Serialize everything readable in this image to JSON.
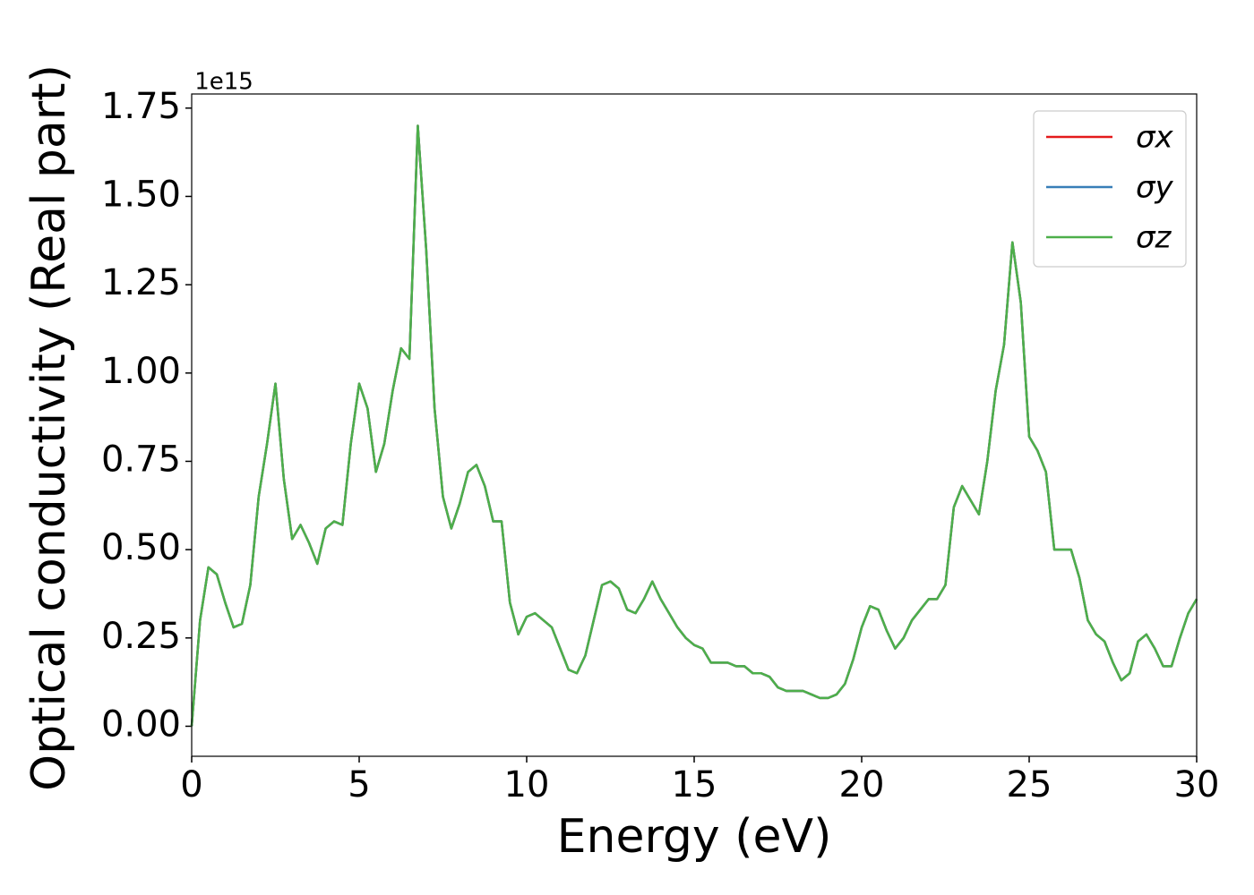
{
  "chart_data": {
    "type": "line",
    "xlabel": "Energy (eV)",
    "ylabel": "Optical conductivity (Real part)",
    "y_offset_label": "1e15",
    "x": [
      0,
      0.25,
      0.5,
      0.75,
      1,
      1.25,
      1.5,
      1.75,
      2,
      2.25,
      2.5,
      2.75,
      3,
      3.25,
      3.5,
      3.75,
      4,
      4.25,
      4.5,
      4.75,
      5,
      5.25,
      5.5,
      5.75,
      6,
      6.25,
      6.5,
      6.75,
      7,
      7.25,
      7.5,
      7.75,
      8,
      8.25,
      8.5,
      8.75,
      9,
      9.25,
      9.5,
      9.75,
      10,
      10.25,
      10.5,
      10.75,
      11,
      11.25,
      11.5,
      11.75,
      12,
      12.25,
      12.5,
      12.75,
      13,
      13.25,
      13.5,
      13.75,
      14,
      14.25,
      14.5,
      14.75,
      15,
      15.25,
      15.5,
      15.75,
      16,
      16.25,
      16.5,
      16.75,
      17,
      17.25,
      17.5,
      17.75,
      18,
      18.25,
      18.5,
      18.75,
      19,
      19.25,
      19.5,
      19.75,
      20,
      20.25,
      20.5,
      20.75,
      21,
      21.25,
      21.5,
      21.75,
      22,
      22.25,
      22.5,
      22.75,
      23,
      23.25,
      23.5,
      23.75,
      24,
      24.25,
      24.5,
      24.75,
      25,
      25.25,
      25.5,
      25.75,
      26,
      26.25,
      26.5,
      26.75,
      27,
      27.25,
      27.5,
      27.75,
      28,
      28.25,
      28.5,
      28.75,
      29,
      29.25,
      29.5,
      29.75,
      30
    ],
    "series": [
      {
        "name": "σx",
        "color": "#e41a1c",
        "values": [
          0,
          0.3,
          0.45,
          0.43,
          0.35,
          0.28,
          0.29,
          0.4,
          0.65,
          0.8,
          0.97,
          0.7,
          0.53,
          0.57,
          0.52,
          0.46,
          0.56,
          0.58,
          0.57,
          0.8,
          0.97,
          0.9,
          0.72,
          0.8,
          0.95,
          1.07,
          1.04,
          1.7,
          1.35,
          0.9,
          0.65,
          0.56,
          0.63,
          0.72,
          0.74,
          0.68,
          0.58,
          0.58,
          0.35,
          0.26,
          0.31,
          0.32,
          0.3,
          0.28,
          0.22,
          0.16,
          0.15,
          0.2,
          0.3,
          0.4,
          0.41,
          0.39,
          0.33,
          0.32,
          0.36,
          0.41,
          0.36,
          0.32,
          0.28,
          0.25,
          0.23,
          0.22,
          0.18,
          0.18,
          0.18,
          0.17,
          0.17,
          0.15,
          0.15,
          0.14,
          0.11,
          0.1,
          0.1,
          0.1,
          0.09,
          0.08,
          0.08,
          0.09,
          0.12,
          0.19,
          0.28,
          0.34,
          0.33,
          0.27,
          0.22,
          0.25,
          0.3,
          0.33,
          0.36,
          0.36,
          0.4,
          0.62,
          0.68,
          0.64,
          0.6,
          0.75,
          0.95,
          1.08,
          1.37,
          1.2,
          0.82,
          0.78,
          0.72,
          0.5,
          0.5,
          0.5,
          0.42,
          0.3,
          0.26,
          0.24,
          0.18,
          0.13,
          0.15,
          0.24,
          0.26,
          0.22,
          0.17,
          0.17,
          0.25,
          0.32,
          0.36
        ]
      },
      {
        "name": "σy",
        "color": "#377eb8",
        "values": [
          0,
          0.3,
          0.45,
          0.43,
          0.35,
          0.28,
          0.29,
          0.4,
          0.65,
          0.8,
          0.97,
          0.7,
          0.53,
          0.57,
          0.52,
          0.46,
          0.56,
          0.58,
          0.57,
          0.8,
          0.97,
          0.9,
          0.72,
          0.8,
          0.95,
          1.07,
          1.04,
          1.7,
          1.35,
          0.9,
          0.65,
          0.56,
          0.63,
          0.72,
          0.74,
          0.68,
          0.58,
          0.58,
          0.35,
          0.26,
          0.31,
          0.32,
          0.3,
          0.28,
          0.22,
          0.16,
          0.15,
          0.2,
          0.3,
          0.4,
          0.41,
          0.39,
          0.33,
          0.32,
          0.36,
          0.41,
          0.36,
          0.32,
          0.28,
          0.25,
          0.23,
          0.22,
          0.18,
          0.18,
          0.18,
          0.17,
          0.17,
          0.15,
          0.15,
          0.14,
          0.11,
          0.1,
          0.1,
          0.1,
          0.09,
          0.08,
          0.08,
          0.09,
          0.12,
          0.19,
          0.28,
          0.34,
          0.33,
          0.27,
          0.22,
          0.25,
          0.3,
          0.33,
          0.36,
          0.36,
          0.4,
          0.62,
          0.68,
          0.64,
          0.6,
          0.75,
          0.95,
          1.08,
          1.37,
          1.2,
          0.82,
          0.78,
          0.72,
          0.5,
          0.5,
          0.5,
          0.42,
          0.3,
          0.26,
          0.24,
          0.18,
          0.13,
          0.15,
          0.24,
          0.26,
          0.22,
          0.17,
          0.17,
          0.25,
          0.32,
          0.36
        ]
      },
      {
        "name": "σz",
        "color": "#4daf4a",
        "values": [
          0,
          0.3,
          0.45,
          0.43,
          0.35,
          0.28,
          0.29,
          0.4,
          0.65,
          0.8,
          0.97,
          0.7,
          0.53,
          0.57,
          0.52,
          0.46,
          0.56,
          0.58,
          0.57,
          0.8,
          0.97,
          0.9,
          0.72,
          0.8,
          0.95,
          1.07,
          1.04,
          1.7,
          1.35,
          0.9,
          0.65,
          0.56,
          0.63,
          0.72,
          0.74,
          0.68,
          0.58,
          0.58,
          0.35,
          0.26,
          0.31,
          0.32,
          0.3,
          0.28,
          0.22,
          0.16,
          0.15,
          0.2,
          0.3,
          0.4,
          0.41,
          0.39,
          0.33,
          0.32,
          0.36,
          0.41,
          0.36,
          0.32,
          0.28,
          0.25,
          0.23,
          0.22,
          0.18,
          0.18,
          0.18,
          0.17,
          0.17,
          0.15,
          0.15,
          0.14,
          0.11,
          0.1,
          0.1,
          0.1,
          0.09,
          0.08,
          0.08,
          0.09,
          0.12,
          0.19,
          0.28,
          0.34,
          0.33,
          0.27,
          0.22,
          0.25,
          0.3,
          0.33,
          0.36,
          0.36,
          0.4,
          0.62,
          0.68,
          0.64,
          0.6,
          0.75,
          0.95,
          1.08,
          1.37,
          1.2,
          0.82,
          0.78,
          0.72,
          0.5,
          0.5,
          0.5,
          0.42,
          0.3,
          0.26,
          0.24,
          0.18,
          0.13,
          0.15,
          0.24,
          0.26,
          0.22,
          0.17,
          0.17,
          0.25,
          0.32,
          0.36
        ]
      }
    ],
    "xlim": [
      0,
      30
    ],
    "xticks": [
      0,
      5,
      10,
      15,
      20,
      25,
      30
    ],
    "ylim": [
      -0.085,
      1.79
    ],
    "yticks": [
      {
        "value": 0,
        "label": "0.00"
      },
      0.25,
      {
        "value": 0.5,
        "label": "0.50"
      },
      0.75,
      {
        "value": 1,
        "label": "1.00"
      },
      1.25,
      {
        "value": 1.5,
        "label": "1.50"
      },
      1.75
    ],
    "legend": "upper right",
    "grid": false
  }
}
